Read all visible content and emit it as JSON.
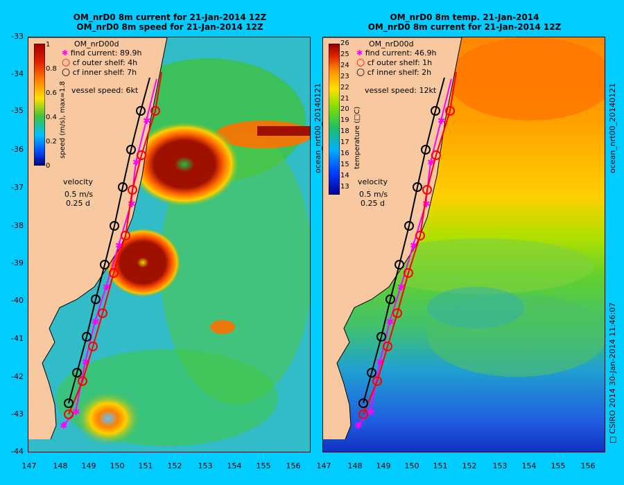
{
  "left": {
    "title1": "OM_nrD0 8m current for 21-Jan-2014 12Z",
    "title2": "OM_nrD0 8m speed for 21-Jan-2014 12Z",
    "model": "OM_nrD00d",
    "legend": [
      "find current: 89.9h",
      "cf outer shelf: 4h",
      "cf inner shelf: 7h"
    ],
    "vessel": "vessel speed: 6kt",
    "colorbar_label": "speed (m/s), max=1.8",
    "colorbar_ticks": [
      "1",
      "0.8",
      "0.6",
      "0.4",
      "0.2",
      "0"
    ],
    "velocity_title": "velocity",
    "velocity_scale": "0.5 m/s",
    "velocity_time": "0.25 d"
  },
  "right": {
    "title1": "OM_nrD0 8m temp. 21-Jan-2014",
    "title2": "OM_nrD0 8m current for 21-Jan-2014 12Z",
    "model": "OM_nrD00d",
    "legend": [
      "find current: 46.9h",
      "cf outer shelf: 1h",
      "cf inner shelf: 2h"
    ],
    "vessel": "vessel speed: 12kt",
    "colorbar_label": "temperature (□C)",
    "colorbar_ticks": [
      "26",
      "25",
      "24",
      "23",
      "22",
      "21",
      "20",
      "19",
      "18",
      "17",
      "16",
      "15",
      "14",
      "13"
    ],
    "velocity_title": "velocity",
    "velocity_scale": "0.5 m/s",
    "velocity_time": "0.25 d"
  },
  "y_ticks": [
    "-33",
    "-34",
    "-35",
    "-36",
    "-37",
    "-38",
    "-39",
    "-40",
    "-41",
    "-42",
    "-43",
    "-44"
  ],
  "x_ticks": [
    "147",
    "148",
    "149",
    "150",
    "151",
    "152",
    "153",
    "154",
    "155",
    "156"
  ],
  "side_text_mid": "ocean_nrt00_20140121",
  "side_text_right_top": "ocean_nrt00_20140121",
  "side_text_right_bottom": "□ CSIRO 2014   30-Jan-2014 11:46:07",
  "colors": {
    "background": "#00ccff",
    "land": "#f8c8a0",
    "find_current": "#ff00ff",
    "outer_shelf": "#ff0000",
    "inner_shelf": "#000000"
  }
}
